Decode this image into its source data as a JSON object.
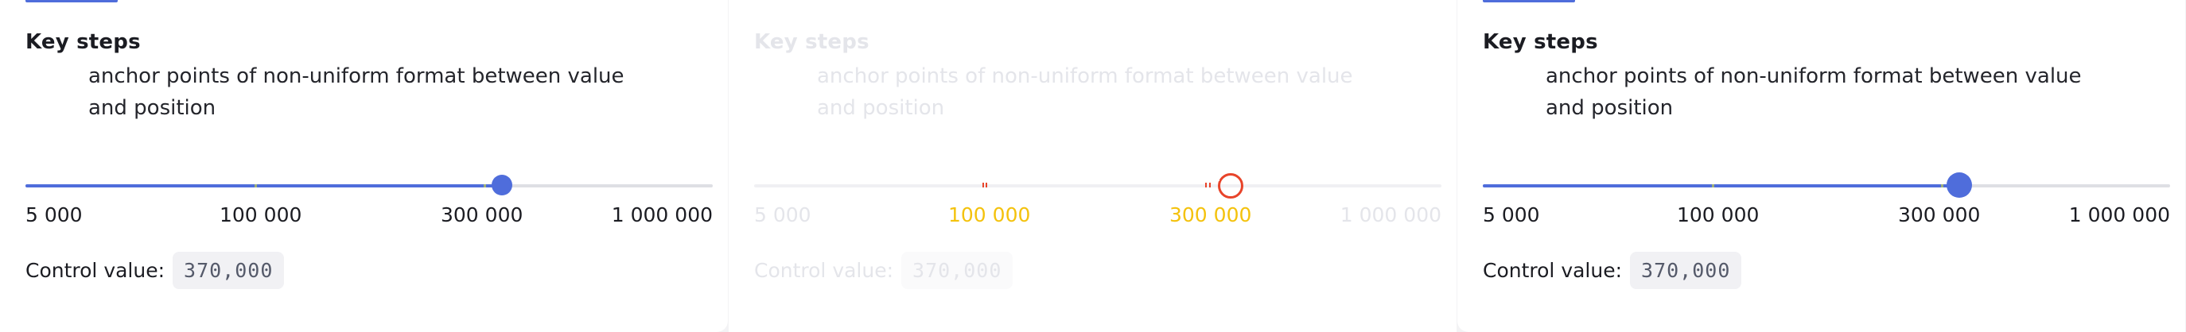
{
  "colors": {
    "accent": "#4f6ddb",
    "highlight": "#f4c20d",
    "marker": "#e8442a"
  },
  "cards": [
    {
      "title": "Key steps",
      "description": "anchor points of non-uniform format between value and position",
      "slider_labels": [
        "5 000",
        "100 000",
        "300 000",
        "1 000 000"
      ],
      "control_label": "Control value:",
      "control_value": "370,000",
      "slider_fraction": 0.694
    },
    {
      "title": "Key steps",
      "description": "anchor points of non-uniform format between value and position",
      "slider_labels": [
        "5 000",
        "100 000",
        "300 000",
        "1 000 000"
      ],
      "control_label": "Control value:",
      "control_value": "370,000",
      "slider_fraction": 0.694
    },
    {
      "title": "Key steps",
      "description": "anchor points of non-uniform format between value and position",
      "slider_labels": [
        "5 000",
        "100 000",
        "300 000",
        "1 000 000"
      ],
      "control_label": "Control value:",
      "control_value": "370,000",
      "slider_fraction": 0.694
    }
  ]
}
